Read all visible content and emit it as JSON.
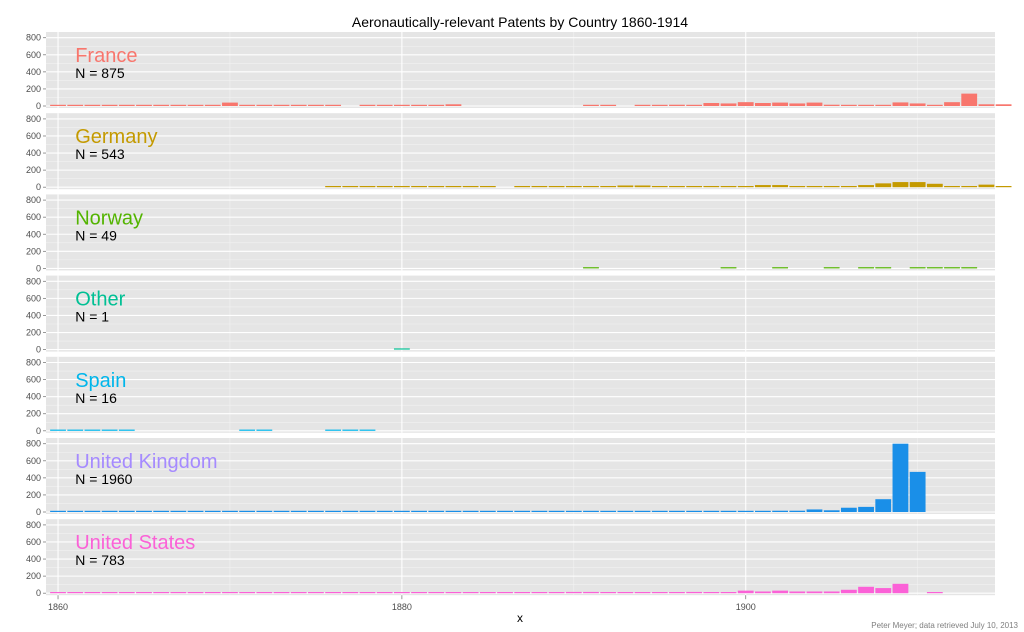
{
  "chart_data": {
    "type": "bar",
    "title": "Aeronautically-relevant Patents by Country 1860-1914",
    "xlabel": "x",
    "ylabel": "",
    "credit": "Peter Meyer; data retrieved July 10, 2013",
    "xlim": [
      1859.3,
      1914.5
    ],
    "ylim": [
      0,
      820
    ],
    "x_ticks": [
      1860,
      1880,
      1900
    ],
    "x_tick_labels": [
      "1860",
      "1880",
      "1900"
    ],
    "y_ticks": [
      0,
      200,
      400,
      600,
      800
    ],
    "y_tick_labels": [
      "0",
      "200",
      "400",
      "600",
      "800"
    ],
    "grid": true,
    "legend": "none",
    "series": [
      {
        "name": "France",
        "n_label": "N = 875",
        "color": "#F8766D",
        "points": [
          [
            1860,
            2
          ],
          [
            1861,
            1
          ],
          [
            1862,
            2
          ],
          [
            1863,
            2
          ],
          [
            1864,
            2
          ],
          [
            1865,
            2
          ],
          [
            1866,
            2
          ],
          [
            1867,
            2
          ],
          [
            1868,
            2
          ],
          [
            1869,
            2
          ],
          [
            1870,
            40
          ],
          [
            1871,
            4
          ],
          [
            1872,
            4
          ],
          [
            1873,
            4
          ],
          [
            1874,
            4
          ],
          [
            1875,
            4
          ],
          [
            1876,
            4
          ],
          [
            1878,
            3
          ],
          [
            1879,
            3
          ],
          [
            1880,
            10
          ],
          [
            1881,
            12
          ],
          [
            1882,
            5
          ],
          [
            1883,
            20
          ],
          [
            1891,
            6
          ],
          [
            1892,
            5
          ],
          [
            1894,
            6
          ],
          [
            1895,
            6
          ],
          [
            1896,
            15
          ],
          [
            1897,
            8
          ],
          [
            1898,
            35
          ],
          [
            1899,
            30
          ],
          [
            1900,
            45
          ],
          [
            1901,
            35
          ],
          [
            1902,
            40
          ],
          [
            1903,
            30
          ],
          [
            1904,
            40
          ],
          [
            1905,
            15
          ],
          [
            1906,
            5
          ],
          [
            1907,
            5
          ],
          [
            1908,
            10
          ],
          [
            1909,
            42
          ],
          [
            1910,
            30
          ],
          [
            1911,
            10
          ],
          [
            1912,
            45
          ],
          [
            1913,
            145
          ],
          [
            1914,
            20
          ],
          [
            1915,
            20
          ]
        ]
      },
      {
        "name": "Germany",
        "n_label": "N = 543",
        "color": "#C49A00",
        "points": [
          [
            1876,
            2
          ],
          [
            1877,
            4
          ],
          [
            1878,
            4
          ],
          [
            1879,
            4
          ],
          [
            1880,
            4
          ],
          [
            1881,
            4
          ],
          [
            1882,
            4
          ],
          [
            1883,
            4
          ],
          [
            1884,
            4
          ],
          [
            1885,
            4
          ],
          [
            1887,
            4
          ],
          [
            1888,
            4
          ],
          [
            1889,
            4
          ],
          [
            1890,
            4
          ],
          [
            1891,
            4
          ],
          [
            1892,
            4
          ],
          [
            1893,
            20
          ],
          [
            1894,
            20
          ],
          [
            1895,
            10
          ],
          [
            1896,
            10
          ],
          [
            1897,
            10
          ],
          [
            1898,
            10
          ],
          [
            1899,
            10
          ],
          [
            1900,
            10
          ],
          [
            1901,
            25
          ],
          [
            1902,
            25
          ],
          [
            1903,
            10
          ],
          [
            1904,
            10
          ],
          [
            1905,
            10
          ],
          [
            1906,
            10
          ],
          [
            1907,
            25
          ],
          [
            1908,
            45
          ],
          [
            1909,
            60
          ],
          [
            1910,
            60
          ],
          [
            1911,
            40
          ],
          [
            1912,
            10
          ],
          [
            1913,
            10
          ],
          [
            1914,
            30
          ],
          [
            1915,
            10
          ]
        ]
      },
      {
        "name": "Norway",
        "n_label": "N = 49",
        "color": "#53B400",
        "points": [
          [
            1891,
            6
          ],
          [
            1899,
            1
          ],
          [
            1902,
            1
          ],
          [
            1905,
            1
          ],
          [
            1907,
            1
          ],
          [
            1908,
            1
          ],
          [
            1910,
            1
          ],
          [
            1911,
            8
          ],
          [
            1912,
            6
          ],
          [
            1913,
            14
          ]
        ]
      },
      {
        "name": "Other",
        "n_label": "N = 1",
        "color": "#00C094",
        "points": [
          [
            1880,
            1
          ]
        ]
      },
      {
        "name": "Spain",
        "n_label": "N = 16",
        "color": "#00B6EB",
        "points": [
          [
            1860,
            1
          ],
          [
            1861,
            1
          ],
          [
            1862,
            1
          ],
          [
            1863,
            1
          ],
          [
            1864,
            1
          ],
          [
            1871,
            2
          ],
          [
            1872,
            2
          ],
          [
            1876,
            2
          ],
          [
            1877,
            2
          ],
          [
            1878,
            2
          ]
        ]
      },
      {
        "name": "United Kingdom",
        "n_label": "N = 1960",
        "color": "#A58AFF",
        "bar_color": "#1A8FE8",
        "points": [
          [
            1860,
            5
          ],
          [
            1861,
            5
          ],
          [
            1862,
            5
          ],
          [
            1863,
            5
          ],
          [
            1864,
            5
          ],
          [
            1865,
            5
          ],
          [
            1866,
            5
          ],
          [
            1867,
            5
          ],
          [
            1868,
            10
          ],
          [
            1869,
            5
          ],
          [
            1870,
            5
          ],
          [
            1871,
            5
          ],
          [
            1872,
            5
          ],
          [
            1873,
            5
          ],
          [
            1874,
            5
          ],
          [
            1875,
            5
          ],
          [
            1876,
            5
          ],
          [
            1877,
            10
          ],
          [
            1878,
            5
          ],
          [
            1879,
            5
          ],
          [
            1880,
            5
          ],
          [
            1881,
            5
          ],
          [
            1882,
            5
          ],
          [
            1883,
            5
          ],
          [
            1884,
            10
          ],
          [
            1885,
            10
          ],
          [
            1886,
            10
          ],
          [
            1887,
            5
          ],
          [
            1888,
            5
          ],
          [
            1889,
            5
          ],
          [
            1890,
            5
          ],
          [
            1891,
            10
          ],
          [
            1892,
            5
          ],
          [
            1893,
            5
          ],
          [
            1894,
            5
          ],
          [
            1895,
            5
          ],
          [
            1896,
            5
          ],
          [
            1897,
            10
          ],
          [
            1898,
            5
          ],
          [
            1899,
            5
          ],
          [
            1900,
            5
          ],
          [
            1901,
            5
          ],
          [
            1902,
            15
          ],
          [
            1903,
            15
          ],
          [
            1904,
            30
          ],
          [
            1905,
            20
          ],
          [
            1906,
            50
          ],
          [
            1907,
            60
          ],
          [
            1908,
            150
          ],
          [
            1909,
            800
          ],
          [
            1910,
            470
          ]
        ]
      },
      {
        "name": "United States",
        "n_label": "N = 783",
        "color": "#FB61D7",
        "points": [
          [
            1860,
            3
          ],
          [
            1861,
            3
          ],
          [
            1862,
            3
          ],
          [
            1863,
            3
          ],
          [
            1864,
            3
          ],
          [
            1865,
            3
          ],
          [
            1866,
            3
          ],
          [
            1867,
            3
          ],
          [
            1868,
            3
          ],
          [
            1869,
            3
          ],
          [
            1870,
            3
          ],
          [
            1871,
            3
          ],
          [
            1872,
            3
          ],
          [
            1873,
            3
          ],
          [
            1874,
            3
          ],
          [
            1875,
            3
          ],
          [
            1876,
            3
          ],
          [
            1877,
            3
          ],
          [
            1878,
            3
          ],
          [
            1879,
            3
          ],
          [
            1880,
            3
          ],
          [
            1881,
            3
          ],
          [
            1882,
            10
          ],
          [
            1883,
            10
          ],
          [
            1884,
            10
          ],
          [
            1885,
            10
          ],
          [
            1886,
            10
          ],
          [
            1887,
            10
          ],
          [
            1888,
            10
          ],
          [
            1889,
            10
          ],
          [
            1890,
            15
          ],
          [
            1891,
            15
          ],
          [
            1892,
            10
          ],
          [
            1893,
            10
          ],
          [
            1894,
            10
          ],
          [
            1895,
            10
          ],
          [
            1896,
            10
          ],
          [
            1897,
            15
          ],
          [
            1898,
            10
          ],
          [
            1899,
            10
          ],
          [
            1900,
            30
          ],
          [
            1901,
            20
          ],
          [
            1902,
            30
          ],
          [
            1903,
            20
          ],
          [
            1904,
            20
          ],
          [
            1905,
            20
          ],
          [
            1906,
            40
          ],
          [
            1907,
            75
          ],
          [
            1908,
            60
          ],
          [
            1909,
            110
          ],
          [
            1911,
            10
          ]
        ]
      }
    ]
  }
}
